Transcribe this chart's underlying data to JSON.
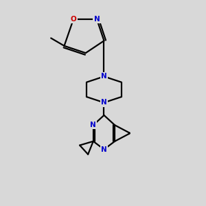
{
  "bg_color": "#d8d8d8",
  "bond_color": "#000000",
  "N_color": "#0000cc",
  "O_color": "#cc0000",
  "lw": 1.6,
  "figsize": [
    3.0,
    3.0
  ],
  "dpi": 100,
  "xlim": [
    0,
    10
  ],
  "ylim": [
    0,
    10
  ]
}
